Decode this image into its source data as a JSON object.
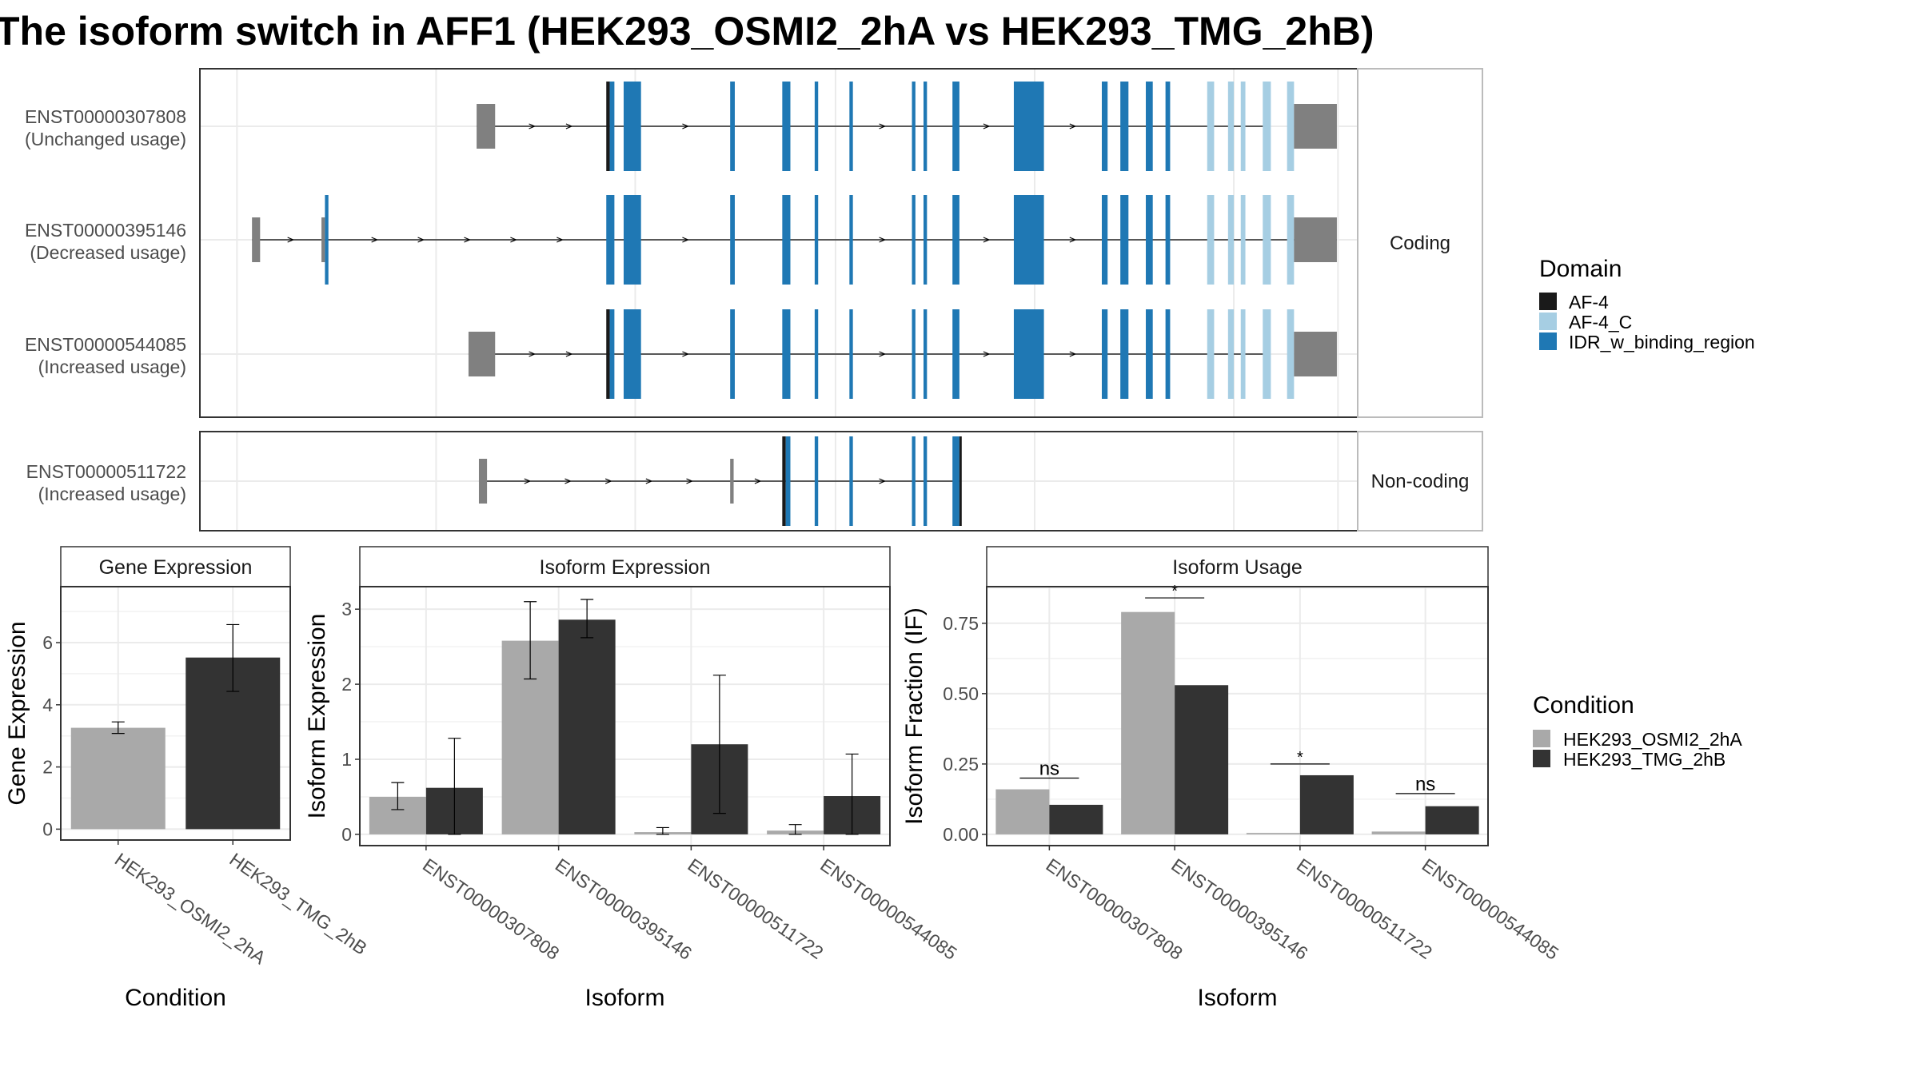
{
  "title": "The isoform switch in AFF1 (HEK293_OSMI2_2hA vs HEK293_TMG_2hB)",
  "colors": {
    "intron": "#000000",
    "utr": "#808080",
    "af4": "#1a1a1a",
    "af4c": "#a6cee3",
    "idr": "#1f78b4",
    "cond_a": "#a9a9a9",
    "cond_b": "#333333",
    "grid": "#ebebeb"
  },
  "structure": {
    "facets": [
      {
        "label": "Coding",
        "rows": [
          0,
          1,
          2
        ]
      },
      {
        "label": "Non-coding",
        "rows": [
          3
        ]
      }
    ],
    "transcripts": [
      {
        "id": "ENST00000307808",
        "usage": "(Unchanged usage)",
        "kind": "coding",
        "start": 0.239,
        "end": 0.919,
        "exons": [
          {
            "s": 0.239,
            "e": 0.255,
            "t": "utr"
          },
          {
            "s": 0.351,
            "e": 0.354,
            "t": "af4"
          },
          {
            "s": 0.354,
            "e": 0.358,
            "t": "idr"
          },
          {
            "s": 0.366,
            "e": 0.381,
            "t": "idr"
          },
          {
            "s": 0.458,
            "e": 0.462,
            "t": "idr"
          },
          {
            "s": 0.503,
            "e": 0.51,
            "t": "idr"
          },
          {
            "s": 0.531,
            "e": 0.534,
            "t": "idr"
          },
          {
            "s": 0.561,
            "e": 0.564,
            "t": "idr"
          },
          {
            "s": 0.615,
            "e": 0.618,
            "t": "idr"
          },
          {
            "s": 0.625,
            "e": 0.628,
            "t": "idr"
          },
          {
            "s": 0.65,
            "e": 0.656,
            "t": "idr"
          },
          {
            "s": 0.703,
            "e": 0.729,
            "t": "idr"
          },
          {
            "s": 0.779,
            "e": 0.784,
            "t": "idr"
          },
          {
            "s": 0.795,
            "e": 0.802,
            "t": "idr"
          },
          {
            "s": 0.817,
            "e": 0.823,
            "t": "idr"
          },
          {
            "s": 0.834,
            "e": 0.838,
            "t": "idr"
          },
          {
            "s": 0.87,
            "e": 0.876,
            "t": "af4c"
          },
          {
            "s": 0.888,
            "e": 0.893,
            "t": "af4c"
          },
          {
            "s": 0.899,
            "e": 0.903,
            "t": "af4c"
          },
          {
            "s": 0.918,
            "e": 0.925,
            "t": "af4c"
          },
          {
            "s": 0.939,
            "e": 0.945,
            "t": "af4c"
          },
          {
            "s": 0.945,
            "e": 0.982,
            "t": "utr"
          }
        ]
      },
      {
        "id": "ENST00000395146",
        "usage": "(Decreased usage)",
        "kind": "coding",
        "start": 0.045,
        "end": 0.982,
        "exons": [
          {
            "s": 0.045,
            "e": 0.052,
            "t": "utr"
          },
          {
            "s": 0.105,
            "e": 0.108,
            "t": "utr"
          },
          {
            "s": 0.108,
            "e": 0.111,
            "t": "idr"
          },
          {
            "s": 0.351,
            "e": 0.358,
            "t": "idr"
          },
          {
            "s": 0.366,
            "e": 0.381,
            "t": "idr"
          },
          {
            "s": 0.458,
            "e": 0.462,
            "t": "idr"
          },
          {
            "s": 0.503,
            "e": 0.51,
            "t": "idr"
          },
          {
            "s": 0.531,
            "e": 0.534,
            "t": "idr"
          },
          {
            "s": 0.561,
            "e": 0.564,
            "t": "idr"
          },
          {
            "s": 0.615,
            "e": 0.618,
            "t": "idr"
          },
          {
            "s": 0.625,
            "e": 0.628,
            "t": "idr"
          },
          {
            "s": 0.65,
            "e": 0.656,
            "t": "idr"
          },
          {
            "s": 0.703,
            "e": 0.729,
            "t": "idr"
          },
          {
            "s": 0.779,
            "e": 0.784,
            "t": "idr"
          },
          {
            "s": 0.795,
            "e": 0.802,
            "t": "idr"
          },
          {
            "s": 0.817,
            "e": 0.823,
            "t": "idr"
          },
          {
            "s": 0.834,
            "e": 0.838,
            "t": "idr"
          },
          {
            "s": 0.87,
            "e": 0.876,
            "t": "af4c"
          },
          {
            "s": 0.888,
            "e": 0.893,
            "t": "af4c"
          },
          {
            "s": 0.899,
            "e": 0.903,
            "t": "af4c"
          },
          {
            "s": 0.918,
            "e": 0.925,
            "t": "af4c"
          },
          {
            "s": 0.939,
            "e": 0.945,
            "t": "af4c"
          },
          {
            "s": 0.945,
            "e": 0.982,
            "t": "utr"
          }
        ]
      },
      {
        "id": "ENST00000544085",
        "usage": "(Increased usage)",
        "kind": "coding",
        "start": 0.232,
        "end": 0.919,
        "exons": [
          {
            "s": 0.232,
            "e": 0.255,
            "t": "utr"
          },
          {
            "s": 0.351,
            "e": 0.354,
            "t": "af4"
          },
          {
            "s": 0.354,
            "e": 0.358,
            "t": "idr"
          },
          {
            "s": 0.366,
            "e": 0.381,
            "t": "idr"
          },
          {
            "s": 0.458,
            "e": 0.462,
            "t": "idr"
          },
          {
            "s": 0.503,
            "e": 0.51,
            "t": "idr"
          },
          {
            "s": 0.531,
            "e": 0.534,
            "t": "idr"
          },
          {
            "s": 0.561,
            "e": 0.564,
            "t": "idr"
          },
          {
            "s": 0.615,
            "e": 0.618,
            "t": "idr"
          },
          {
            "s": 0.625,
            "e": 0.628,
            "t": "idr"
          },
          {
            "s": 0.65,
            "e": 0.656,
            "t": "idr"
          },
          {
            "s": 0.703,
            "e": 0.729,
            "t": "idr"
          },
          {
            "s": 0.779,
            "e": 0.784,
            "t": "idr"
          },
          {
            "s": 0.795,
            "e": 0.802,
            "t": "idr"
          },
          {
            "s": 0.817,
            "e": 0.823,
            "t": "idr"
          },
          {
            "s": 0.834,
            "e": 0.838,
            "t": "idr"
          },
          {
            "s": 0.87,
            "e": 0.876,
            "t": "af4c"
          },
          {
            "s": 0.888,
            "e": 0.893,
            "t": "af4c"
          },
          {
            "s": 0.899,
            "e": 0.903,
            "t": "af4c"
          },
          {
            "s": 0.918,
            "e": 0.925,
            "t": "af4c"
          },
          {
            "s": 0.939,
            "e": 0.945,
            "t": "af4c"
          },
          {
            "s": 0.945,
            "e": 0.982,
            "t": "utr"
          }
        ]
      },
      {
        "id": "ENST00000511722",
        "usage": "(Increased usage)",
        "kind": "noncoding",
        "start": 0.241,
        "end": 0.656,
        "exons": [
          {
            "s": 0.241,
            "e": 0.248,
            "t": "utr"
          },
          {
            "s": 0.458,
            "e": 0.461,
            "t": "utr"
          },
          {
            "s": 0.503,
            "e": 0.506,
            "t": "af4"
          },
          {
            "s": 0.506,
            "e": 0.51,
            "t": "idr"
          },
          {
            "s": 0.531,
            "e": 0.534,
            "t": "idr"
          },
          {
            "s": 0.561,
            "e": 0.564,
            "t": "idr"
          },
          {
            "s": 0.615,
            "e": 0.618,
            "t": "idr"
          },
          {
            "s": 0.625,
            "e": 0.628,
            "t": "idr"
          },
          {
            "s": 0.65,
            "e": 0.656,
            "t": "idr"
          },
          {
            "s": 0.656,
            "e": 0.658,
            "t": "af4"
          }
        ]
      }
    ]
  },
  "legend_domain": {
    "title": "Domain",
    "items": [
      {
        "label": "AF-4",
        "color": "#1a1a1a"
      },
      {
        "label": "AF-4_C",
        "color": "#a6cee3"
      },
      {
        "label": "IDR_w_binding_region",
        "color": "#1f78b4"
      }
    ]
  },
  "legend_condition": {
    "title": "Condition",
    "items": [
      {
        "label": "HEK293_OSMI2_2hA",
        "color": "#a9a9a9"
      },
      {
        "label": "HEK293_TMG_2hB",
        "color": "#333333"
      }
    ]
  },
  "chart_data": [
    {
      "type": "bar",
      "title": "Gene Expression",
      "xlabel": "Condition",
      "ylabel": "Gene Expression",
      "categories": [
        "HEK293_OSMI2_2hA",
        "HEK293_TMG_2hB"
      ],
      "ylim": [
        -0.35,
        7.8
      ],
      "yticks": [
        0,
        2,
        4,
        6
      ],
      "ytick_labels": [
        "0",
        "2",
        "4",
        "6"
      ],
      "series": [
        {
          "values": [
            3.26,
            5.52
          ],
          "err_low": [
            3.08,
            4.43
          ],
          "err_high": [
            3.45,
            6.58
          ]
        }
      ]
    },
    {
      "type": "bar",
      "title": "Isoform Expression",
      "xlabel": "Isoform",
      "ylabel": "Isoform Expression",
      "categories": [
        "ENST00000307808",
        "ENST00000395146",
        "ENST00000511722",
        "ENST00000544085"
      ],
      "ylim": [
        -0.15,
        3.3
      ],
      "yticks": [
        0,
        1,
        2,
        3
      ],
      "ytick_labels": [
        "0",
        "1",
        "2",
        "3"
      ],
      "series": [
        {
          "name": "HEK293_OSMI2_2hA",
          "values": [
            0.5,
            2.58,
            0.03,
            0.05
          ],
          "err_low": [
            0.33,
            2.07,
            0.0,
            0.0
          ],
          "err_high": [
            0.69,
            3.1,
            0.09,
            0.13
          ]
        },
        {
          "name": "HEK293_TMG_2hB",
          "values": [
            0.62,
            2.86,
            1.2,
            0.51
          ],
          "err_low": [
            0.0,
            2.62,
            0.28,
            0.0
          ],
          "err_high": [
            1.28,
            3.13,
            2.12,
            1.07
          ]
        }
      ]
    },
    {
      "type": "bar",
      "title": "Isoform Usage",
      "xlabel": "Isoform",
      "ylabel": "Isoform Fraction (IF)",
      "categories": [
        "ENST00000307808",
        "ENST00000395146",
        "ENST00000511722",
        "ENST00000544085"
      ],
      "ylim": [
        -0.04,
        0.88
      ],
      "yticks": [
        0,
        0.25,
        0.5,
        0.75
      ],
      "ytick_labels": [
        "0.00",
        "0.25",
        "0.50",
        "0.75"
      ],
      "series": [
        {
          "name": "HEK293_OSMI2_2hA",
          "values": [
            0.16,
            0.79,
            0.005,
            0.01
          ]
        },
        {
          "name": "HEK293_TMG_2hB",
          "values": [
            0.105,
            0.53,
            0.21,
            0.1
          ]
        }
      ],
      "significance": [
        {
          "label": "ns",
          "y": 0.2
        },
        {
          "label": "*",
          "y": 0.84
        },
        {
          "label": "*",
          "y": 0.25
        },
        {
          "label": "ns",
          "y": 0.145
        }
      ]
    }
  ]
}
